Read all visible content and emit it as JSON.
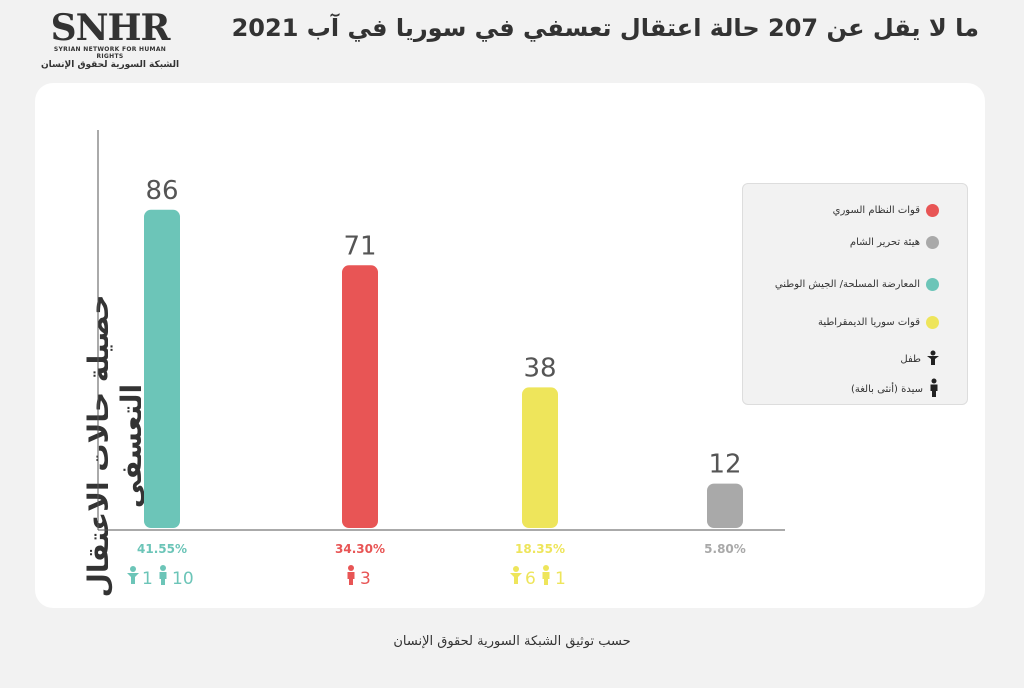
{
  "logo": {
    "mark": "SNHR",
    "en": "SYRIAN NETWORK FOR HUMAN RIGHTS",
    "ar": "الشبكة السورية لحقوق الإنسان"
  },
  "title": "ما لا يقل عن 207 حالة اعتقال تعسفي في سوريا في آب 2021",
  "source": "حسب توثيق الشبكة السورية لحقوق الإنسان",
  "chart_data": {
    "type": "bar",
    "ylabel": "حصيلة حالات الاعتقال التعسفي",
    "ylim": [
      0,
      100
    ],
    "series": [
      {
        "name": "المعارضة المسلحة/ الجيش الوطني",
        "value": 86,
        "percent": "41.55%",
        "color": "#6cc5b8",
        "children": "1",
        "women": "10"
      },
      {
        "name": "قوات النظام السوري",
        "value": 71,
        "percent": "34.30%",
        "color": "#e85555",
        "children": "",
        "women": "3"
      },
      {
        "name": "قوات سوريا الديمقراطية",
        "value": 38,
        "percent": "18.35%",
        "color": "#eee55b",
        "children": "6",
        "women": "1"
      },
      {
        "name": "هيئة تحرير الشام",
        "value": 12,
        "percent": "5.80%",
        "color": "#a9a9a9",
        "children": "",
        "women": ""
      }
    ]
  },
  "legend": {
    "items": [
      {
        "label": "قوات النظام السوري",
        "color": "#e85555",
        "icon": "dot"
      },
      {
        "label": "هيئة تحرير الشام",
        "color": "#a9a9a9",
        "icon": "dot"
      },
      {
        "label": "المعارضة المسلحة/ الجيش الوطني",
        "color": "#6cc5b8",
        "icon": "dot"
      },
      {
        "label": "قوات سوريا الديمقراطية",
        "color": "#eee55b",
        "icon": "dot"
      },
      {
        "label": "طفل",
        "color": "#222222",
        "icon": "child"
      },
      {
        "label": "سيدة (أنثى بالغة)",
        "color": "#222222",
        "icon": "woman"
      }
    ]
  }
}
